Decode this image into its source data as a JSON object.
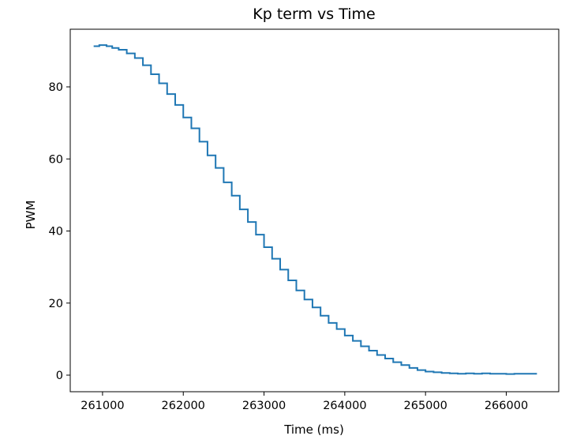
{
  "chart_data": {
    "type": "line",
    "title": "Kp term vs Time",
    "xlabel": "Time (ms)",
    "ylabel": "PWM",
    "xlim": [
      260600,
      266650
    ],
    "ylim": [
      -4.6,
      96.0
    ],
    "x_ticks": [
      261000,
      262000,
      263000,
      264000,
      265000,
      266000
    ],
    "x_tick_labels": [
      "261000",
      "262000",
      "263000",
      "264000",
      "265000",
      "266000"
    ],
    "y_ticks": [
      0,
      20,
      40,
      60,
      80
    ],
    "y_tick_labels": [
      "0",
      "20",
      "40",
      "60",
      "80"
    ],
    "grid": false,
    "legend": false,
    "series": [
      {
        "color": "#1f77b4",
        "x": [
          260890,
          260960,
          261050,
          261120,
          261200,
          261300,
          261400,
          261500,
          261600,
          261700,
          261800,
          261900,
          262000,
          262100,
          262200,
          262300,
          262400,
          262500,
          262600,
          262700,
          262800,
          262900,
          263000,
          263100,
          263200,
          263300,
          263400,
          263500,
          263600,
          263700,
          263800,
          263900,
          264000,
          264100,
          264200,
          264300,
          264400,
          264500,
          264600,
          264700,
          264800,
          264900,
          265000,
          265100,
          265200,
          265300,
          265400,
          265500,
          265600,
          265700,
          265800,
          265900,
          266000,
          266100,
          266200,
          266380
        ],
        "y": [
          91.3,
          91.6,
          91.3,
          90.8,
          90.3,
          89.3,
          88.0,
          86.0,
          83.5,
          81.0,
          78.0,
          75.0,
          71.5,
          68.5,
          64.8,
          61.0,
          57.5,
          53.5,
          49.8,
          46.0,
          42.5,
          39.0,
          35.5,
          32.3,
          29.3,
          26.3,
          23.5,
          21.0,
          18.8,
          16.5,
          14.5,
          12.8,
          11.0,
          9.5,
          8.0,
          6.8,
          5.6,
          4.6,
          3.6,
          2.8,
          2.0,
          1.4,
          1.0,
          0.8,
          0.6,
          0.5,
          0.4,
          0.5,
          0.4,
          0.5,
          0.4,
          0.4,
          0.3,
          0.4,
          0.4,
          0.4
        ]
      }
    ]
  }
}
